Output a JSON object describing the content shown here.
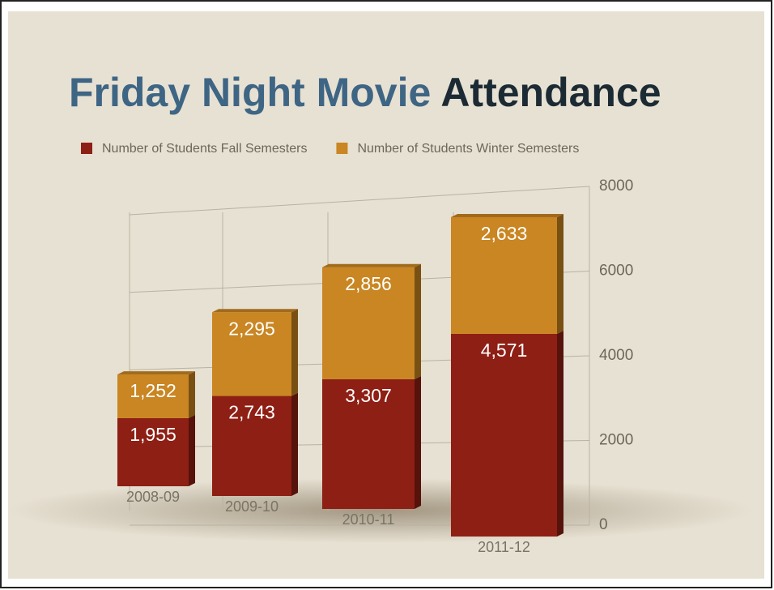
{
  "chart_data": {
    "type": "bar",
    "stacked": true,
    "title": [
      "Friday Night Movie",
      "Attendance"
    ],
    "categories": [
      "2008-09",
      "2009-10",
      "2010-11",
      "2011-12"
    ],
    "series": [
      {
        "name": "Number of Students Fall Semesters",
        "color": "#8e1f14",
        "values": [
          1955,
          2743,
          3307,
          4571
        ],
        "value_labels": [
          "1,955",
          "2,743",
          "3,307",
          "4,571"
        ]
      },
      {
        "name": "Number of Students Winter Semesters",
        "color": "#c98622",
        "values": [
          1252,
          2295,
          2856,
          2633
        ],
        "value_labels": [
          "1,252",
          "2,295",
          "2,856",
          "2,633"
        ]
      }
    ],
    "ylim": [
      0,
      8000
    ],
    "yticks": [
      0,
      2000,
      4000,
      6000,
      8000
    ],
    "grid": true,
    "legend": "top"
  }
}
